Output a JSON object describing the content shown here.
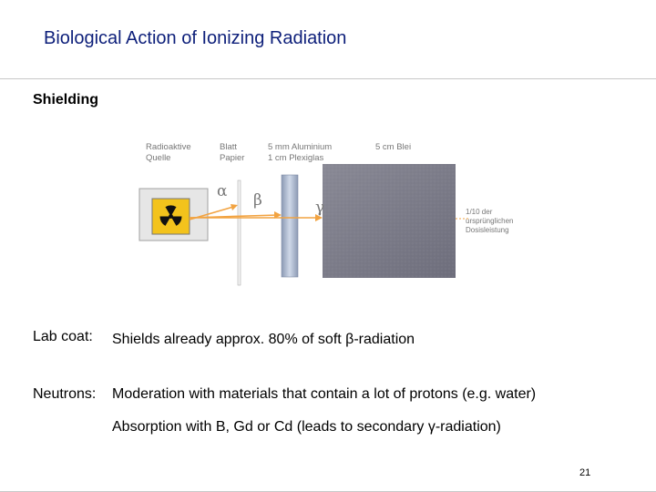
{
  "title": "Biological Action of Ionizing Radiation",
  "section": "Shielding",
  "figure": {
    "source_label": [
      "Radioaktive",
      "Quelle"
    ],
    "paper_label": [
      "Blatt",
      "Papier"
    ],
    "aluminium_label": [
      "5 mm Aluminium",
      "1 cm Plexiglas"
    ],
    "lead_label": "5 cm Blei",
    "dose_label": [
      "1/10 der",
      "ursprünglichen",
      "Dosisleistung"
    ],
    "alpha": "α",
    "beta": "β",
    "gamma": "γ",
    "colors": {
      "arrow": "#f2a341",
      "source_box": "#f3c31c",
      "lead": "#7d7d8b"
    }
  },
  "items": [
    {
      "label": "Lab coat:",
      "text": "Shields already approx. 80% of soft β-radiation"
    },
    {
      "label": "Neutrons:",
      "text": "Moderation with materials that contain a lot of protons (e.g. water)"
    },
    {
      "label": "",
      "text": "Absorption with B, Gd or Cd (leads to secondary γ-radiation)"
    }
  ],
  "page_number": "21"
}
